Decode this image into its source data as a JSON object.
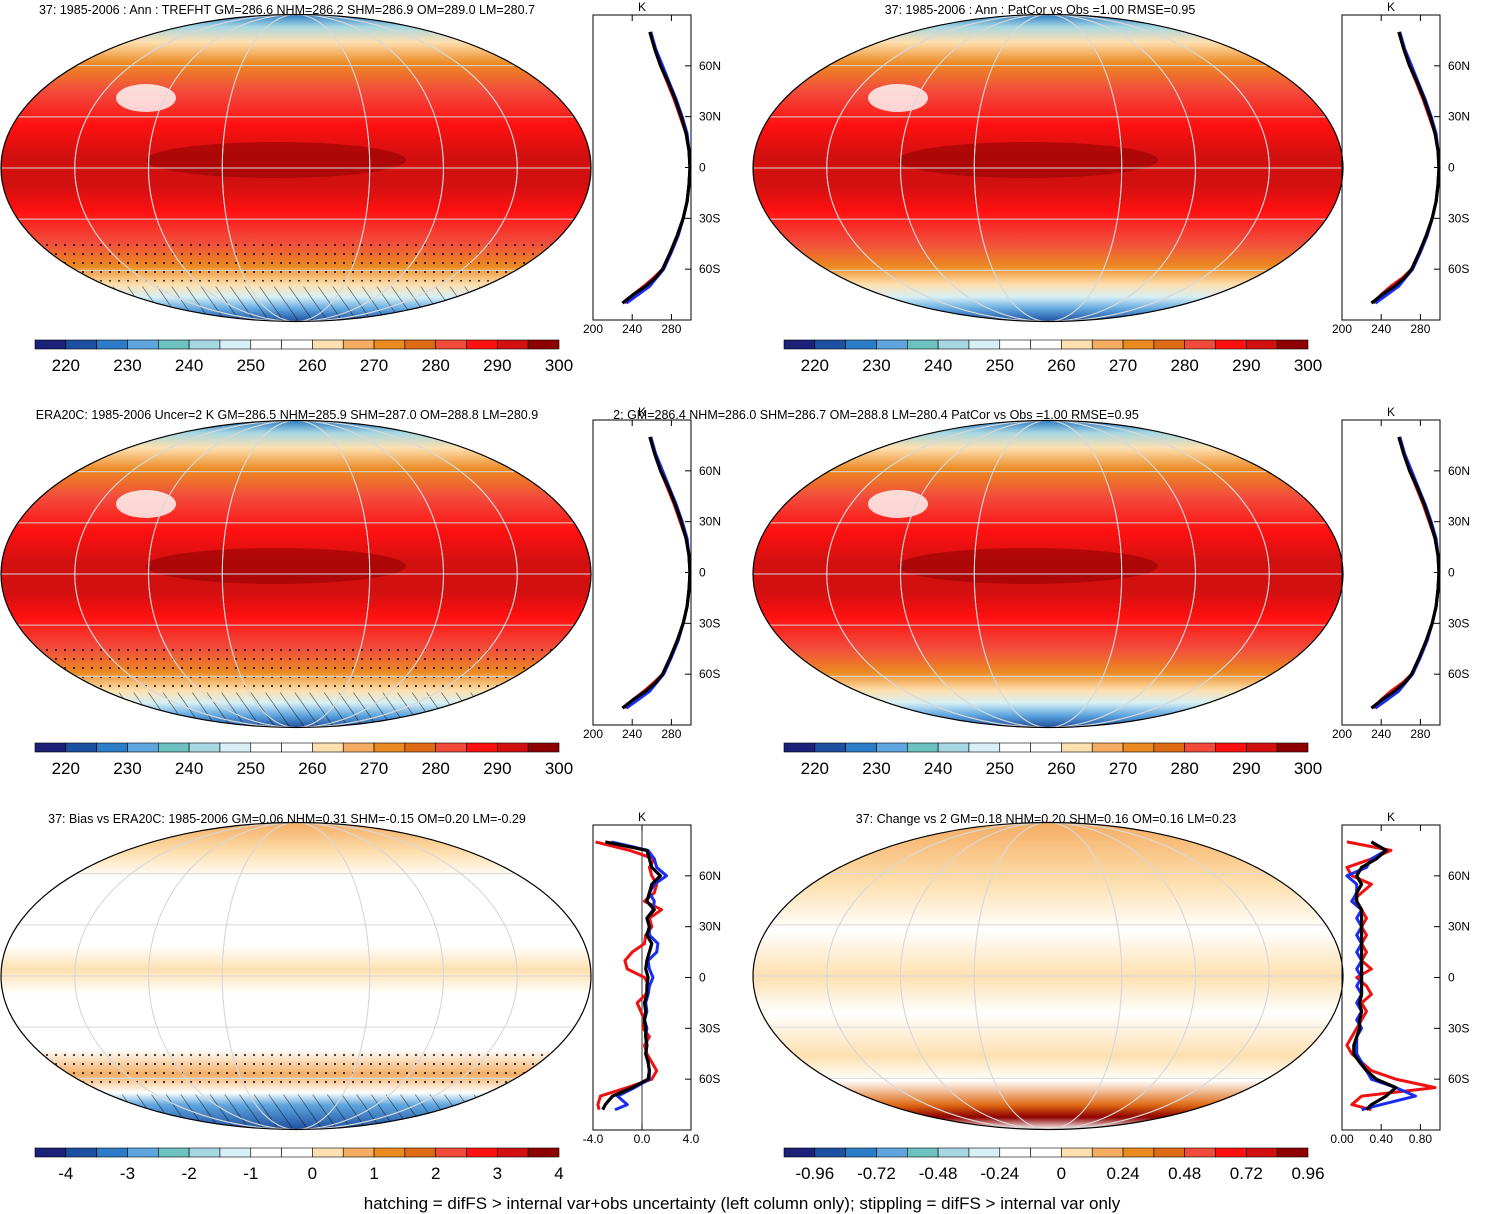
{
  "figure": {
    "footer": "hatching = difFS > internal var+obs uncertainty (left column only); stippling = difFS > internal var only"
  },
  "colors": {
    "temperature": [
      "#1c2078",
      "#1d50a0",
      "#2b7dc8",
      "#5fa6df",
      "#6dc1c1",
      "#a7d7e2",
      "#d7eff5",
      "#ffffff",
      "#ffffff",
      "#fde0b0",
      "#f5ad63",
      "#ec8a22",
      "#df6a14",
      "#f24b3c",
      "#ff1010",
      "#d31010",
      "#8e0000"
    ],
    "difference": [
      "#1c2078",
      "#1d50a0",
      "#2b7dc8",
      "#5fa6df",
      "#6dc1c1",
      "#a7d7e2",
      "#d7eff5",
      "#ffffff",
      "#ffffff",
      "#fde0b0",
      "#f5ad63",
      "#ec8a22",
      "#df6a14",
      "#f24b3c",
      "#ff1010",
      "#d31010",
      "#8e0000"
    ],
    "profile_red": "#ee1111",
    "profile_blue": "#1a2cf0",
    "profile_black": "#000000"
  },
  "chart_data": [
    {
      "id": "p1",
      "type": "map",
      "title": "37: 1985-2006 : Ann : TREFHT GM=286.6 NHM=286.2 SHM=286.9 OM=289.0 LM=280.7",
      "colorbar": {
        "labels": [
          "220",
          "230",
          "240",
          "250",
          "260",
          "270",
          "280",
          "290",
          "300"
        ],
        "scale": "temperature"
      },
      "profile": {
        "unit": "K",
        "xlim": [
          200,
          300
        ],
        "xticks": [
          "200",
          "240",
          "280"
        ],
        "lat_ticks": [
          "60N",
          "30N",
          "0",
          "30S",
          "60S"
        ],
        "lat": [
          80,
          70,
          60,
          50,
          40,
          30,
          20,
          10,
          0,
          -10,
          -20,
          -30,
          -40,
          -50,
          -60,
          -65,
          -70,
          -75,
          -80
        ],
        "series": [
          {
            "name": "red",
            "values": [
              259,
              263,
              269,
              276,
              283,
              289,
              295,
              298,
              299,
              298,
              296,
              292,
              286,
              279,
              271,
              262,
              252,
              241,
              232
            ]
          },
          {
            "name": "blue",
            "values": [
              259,
              264,
              271,
              278,
              285,
              291,
              296,
              298,
              299,
              298,
              296,
              292,
              287,
              280,
              272,
              265,
              258,
              246,
              234
            ]
          },
          {
            "name": "black",
            "values": [
              258,
              263,
              269,
              277,
              284,
              290,
              295,
              298,
              299,
              298,
              296,
              292,
              286,
              279,
              271,
              264,
              254,
              241,
              230
            ]
          }
        ]
      }
    },
    {
      "id": "p2",
      "type": "map",
      "title": "37: 1985-2006 : Ann : PatCor vs Obs =1.00 RMSE=0.95",
      "colorbar": {
        "labels": [
          "220",
          "230",
          "240",
          "250",
          "260",
          "270",
          "280",
          "290",
          "300"
        ],
        "scale": "temperature"
      },
      "profile": {
        "unit": "K",
        "xlim": [
          200,
          300
        ],
        "xticks": [
          "200",
          "240",
          "280"
        ],
        "lat_ticks": [
          "60N",
          "30N",
          "0",
          "30S",
          "60S"
        ],
        "lat": [
          80,
          70,
          60,
          50,
          40,
          30,
          20,
          10,
          0,
          -10,
          -20,
          -30,
          -40,
          -50,
          -60,
          -65,
          -70,
          -75,
          -80
        ],
        "series": [
          {
            "name": "red",
            "values": [
              259,
              263,
              269,
              276,
              283,
              289,
              295,
              298,
              299,
              298,
              296,
              292,
              286,
              279,
              271,
              262,
              250,
              240,
              232
            ]
          },
          {
            "name": "blue",
            "values": [
              259,
              264,
              271,
              278,
              285,
              291,
              296,
              298,
              299,
              298,
              296,
              292,
              287,
              280,
              272,
              265,
              258,
              246,
              234
            ]
          },
          {
            "name": "black",
            "values": [
              258,
              263,
              269,
              277,
              284,
              290,
              295,
              298,
              299,
              298,
              296,
              292,
              286,
              279,
              271,
              264,
              254,
              241,
              230
            ]
          }
        ]
      }
    },
    {
      "id": "p3",
      "type": "map",
      "title": "ERA20C: 1985-2006 Uncer=2 K GM=286.5 NHM=285.9 SHM=287.0 OM=288.8 LM=280.9",
      "colorbar": {
        "labels": [
          "220",
          "230",
          "240",
          "250",
          "260",
          "270",
          "280",
          "290",
          "300"
        ],
        "scale": "temperature"
      },
      "profile": {
        "unit": "K",
        "xlim": [
          200,
          300
        ],
        "xticks": [
          "200",
          "240",
          "280"
        ],
        "lat_ticks": [
          "60N",
          "30N",
          "0",
          "30S",
          "60S"
        ],
        "lat": [
          80,
          70,
          60,
          50,
          40,
          30,
          20,
          10,
          0,
          -10,
          -20,
          -30,
          -40,
          -50,
          -60,
          -65,
          -70,
          -75,
          -80
        ],
        "series": [
          {
            "name": "red",
            "values": [
              259,
              263,
              269,
              276,
              283,
              289,
              295,
              298,
              299,
              298,
              296,
              292,
              286,
              279,
              271,
              262,
              252,
              241,
              232
            ]
          },
          {
            "name": "blue",
            "values": [
              259,
              264,
              271,
              278,
              285,
              291,
              296,
              298,
              299,
              298,
              296,
              292,
              287,
              280,
              272,
              265,
              258,
              246,
              234
            ]
          },
          {
            "name": "black",
            "values": [
              258,
              263,
              269,
              277,
              284,
              290,
              295,
              298,
              299,
              298,
              296,
              292,
              286,
              279,
              271,
              264,
              254,
              241,
              230
            ]
          }
        ]
      }
    },
    {
      "id": "p4",
      "type": "map",
      "title": "2: GM=286.4 NHM=286.0 SHM=286.7 OM=288.8 LM=280.4 PatCor vs Obs =1.00 RMSE=0.95",
      "colorbar": {
        "labels": [
          "220",
          "230",
          "240",
          "250",
          "260",
          "270",
          "280",
          "290",
          "300"
        ],
        "scale": "temperature"
      },
      "profile": {
        "unit": "K",
        "xlim": [
          200,
          300
        ],
        "xticks": [
          "200",
          "240",
          "280"
        ],
        "lat_ticks": [
          "60N",
          "30N",
          "0",
          "30S",
          "60S"
        ],
        "lat": [
          80,
          70,
          60,
          50,
          40,
          30,
          20,
          10,
          0,
          -10,
          -20,
          -30,
          -40,
          -50,
          -60,
          -65,
          -70,
          -75,
          -80
        ],
        "series": [
          {
            "name": "red",
            "values": [
              259,
              263,
              269,
              276,
              283,
              289,
              295,
              298,
              299,
              298,
              296,
              292,
              286,
              279,
              271,
              262,
              250,
              240,
              232
            ]
          },
          {
            "name": "blue",
            "values": [
              259,
              264,
              271,
              278,
              285,
              291,
              296,
              298,
              299,
              298,
              296,
              292,
              287,
              280,
              272,
              265,
              258,
              246,
              234
            ]
          },
          {
            "name": "black",
            "values": [
              258,
              263,
              269,
              277,
              284,
              290,
              295,
              298,
              299,
              298,
              296,
              292,
              286,
              279,
              271,
              264,
              254,
              241,
              230
            ]
          }
        ]
      }
    },
    {
      "id": "p5",
      "type": "map",
      "title": "37: Bias vs ERA20C: 1985-2006 GM=0.06 NHM=0.31 SHM=-0.15 OM=0.20 LM=-0.29",
      "colorbar": {
        "labels": [
          "-4",
          "-3",
          "-2",
          "-1",
          "0",
          "1",
          "2",
          "3",
          "4"
        ],
        "scale": "difference"
      },
      "profile": {
        "unit": "K",
        "xlim": [
          -4,
          4
        ],
        "xticks": [
          "-4.0",
          "0.0",
          "4.0"
        ],
        "lat_ticks": [
          "60N",
          "30N",
          "0",
          "30S",
          "60S"
        ],
        "lat": [
          80,
          75,
          70,
          65,
          60,
          55,
          50,
          45,
          40,
          35,
          30,
          25,
          20,
          15,
          10,
          5,
          0,
          -5,
          -10,
          -15,
          -20,
          -25,
          -30,
          -35,
          -40,
          -45,
          -50,
          -55,
          -60,
          -65,
          -70,
          -75,
          -78
        ],
        "series": [
          {
            "name": "red",
            "values": [
              -3.8,
              -1.0,
              1.0,
              0.6,
              0.8,
              1.2,
              1.0,
              0.2,
              1.6,
              0.6,
              0.8,
              0.3,
              0.2,
              -0.8,
              -1.4,
              -1.2,
              0.2,
              0.6,
              0.3,
              -0.4,
              -0.1,
              0.2,
              0.1,
              0.6,
              0.2,
              0.4,
              0.8,
              1.2,
              0.8,
              -1.2,
              -3.4,
              -3.6,
              -3.5
            ]
          },
          {
            "name": "blue",
            "values": [
              -2.5,
              0.5,
              1.0,
              1.2,
              2.0,
              1.0,
              0.6,
              1.0,
              0.9,
              0.4,
              0.6,
              0.6,
              1.3,
              1.2,
              0.5,
              0.6,
              0.9,
              0.6,
              0.5,
              0.3,
              0.4,
              0.2,
              0.4,
              0.3,
              0.4,
              0.3,
              0.5,
              0.6,
              0.6,
              -0.6,
              -2.0,
              -1.2,
              -2.2
            ]
          },
          {
            "name": "black",
            "values": [
              -3.0,
              0.4,
              0.6,
              0.8,
              1.5,
              0.8,
              0.6,
              0.4,
              1.0,
              0.4,
              0.6,
              0.4,
              0.8,
              0.6,
              0.4,
              0.3,
              0.5,
              0.4,
              0.4,
              0.2,
              0.3,
              0.2,
              0.3,
              0.3,
              0.4,
              0.3,
              0.5,
              0.6,
              0.5,
              -0.8,
              -2.4,
              -3.0,
              -3.2
            ]
          }
        ]
      }
    },
    {
      "id": "p6",
      "type": "map",
      "title": "37: Change vs 2 GM=0.18 NHM=0.20 SHM=0.16 OM=0.16 LM=0.23",
      "colorbar": {
        "labels": [
          "-0.96",
          "-0.72",
          "-0.48",
          "-0.24",
          "0",
          "0.24",
          "0.48",
          "0.72",
          "0.96"
        ],
        "scale": "difference"
      },
      "profile": {
        "unit": "K",
        "xlim": [
          0,
          1.0
        ],
        "xticks": [
          "0.00",
          "0.40",
          "0.80"
        ],
        "lat_ticks": [
          "60N",
          "30N",
          "0",
          "30S",
          "60S"
        ],
        "lat": [
          80,
          75,
          70,
          65,
          60,
          55,
          50,
          45,
          40,
          35,
          30,
          25,
          20,
          15,
          10,
          5,
          0,
          -5,
          -10,
          -15,
          -20,
          -25,
          -30,
          -35,
          -40,
          -45,
          -50,
          -55,
          -60,
          -65,
          -70,
          -75,
          -78
        ],
        "series": [
          {
            "name": "red",
            "values": [
              0.05,
              0.5,
              0.3,
              0.05,
              0.1,
              0.3,
              0.2,
              0.1,
              0.2,
              0.25,
              0.2,
              0.25,
              0.2,
              0.25,
              0.2,
              0.3,
              0.15,
              0.25,
              0.3,
              0.2,
              0.25,
              0.2,
              0.15,
              0.1,
              0.05,
              0.1,
              0.2,
              0.3,
              0.55,
              0.95,
              0.2,
              0.1,
              0.3
            ]
          },
          {
            "name": "blue",
            "values": [
              0.3,
              0.45,
              0.3,
              0.25,
              0.05,
              0.15,
              0.15,
              0.1,
              0.2,
              0.15,
              0.2,
              0.15,
              0.2,
              0.15,
              0.2,
              0.15,
              0.2,
              0.15,
              0.2,
              0.15,
              0.2,
              0.15,
              0.2,
              0.15,
              0.15,
              0.15,
              0.2,
              0.25,
              0.3,
              0.55,
              0.75,
              0.4,
              0.2
            ]
          },
          {
            "name": "black",
            "values": [
              0.3,
              0.45,
              0.35,
              0.2,
              0.15,
              0.2,
              0.15,
              0.15,
              0.2,
              0.2,
              0.2,
              0.2,
              0.2,
              0.2,
              0.2,
              0.2,
              0.2,
              0.2,
              0.2,
              0.18,
              0.2,
              0.18,
              0.18,
              0.15,
              0.12,
              0.12,
              0.18,
              0.25,
              0.35,
              0.55,
              0.45,
              0.3,
              0.25
            ]
          }
        ]
      }
    }
  ]
}
